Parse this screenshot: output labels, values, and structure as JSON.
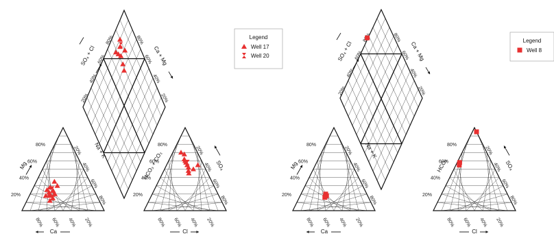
{
  "chart_data": [
    {
      "type": "scatter",
      "title": "",
      "legend": {
        "title": "Legend",
        "placement": "right",
        "entries": [
          {
            "name": "Well 17",
            "marker": "triangle"
          },
          {
            "name": "Well 20",
            "marker": "hourglass"
          }
        ]
      },
      "colors": {
        "points": "#e83030",
        "lines": "#111111"
      },
      "axis_labels": {
        "cation_left": "Mg",
        "cation_bottom": "Ca",
        "cation_right": "Na + K",
        "anion_left": "HCO₃ + CO₃",
        "anion_bottom": "Cl",
        "anion_right": "SO₄",
        "diamond_left": "SO₄ + Cl",
        "diamond_right": "Ca + Mg"
      },
      "tick_labels": [
        "20%",
        "40%",
        "60%",
        "80%"
      ],
      "series": [
        {
          "name": "Well 17",
          "cation_points": [
            {
              "mg": 22,
              "na_k": 22
            },
            {
              "mg": 30,
              "na_k": 28
            },
            {
              "mg": 18,
              "na_k": 25
            },
            {
              "mg": 25,
              "na_k": 18
            },
            {
              "mg": 20,
              "na_k": 30
            },
            {
              "mg": 15,
              "na_k": 30
            },
            {
              "mg": 28,
              "na_k": 20
            },
            {
              "mg": 35,
              "na_k": 22
            },
            {
              "mg": 12,
              "na_k": 28
            },
            {
              "mg": 24,
              "na_k": 26
            },
            {
              "mg": 18,
              "na_k": 20
            },
            {
              "mg": 20,
              "na_k": 24
            }
          ],
          "anion_points": [
            {
              "cl": 38,
              "so4": 55
            },
            {
              "cl": 30,
              "so4": 48
            },
            {
              "cl": 20,
              "so4": 60
            },
            {
              "cl": 28,
              "so4": 52
            },
            {
              "cl": 22,
              "so4": 58
            },
            {
              "cl": 18,
              "so4": 62
            },
            {
              "cl": 32,
              "so4": 45
            },
            {
              "cl": 25,
              "so4": 55
            },
            {
              "cl": 35,
              "so4": 50
            },
            {
              "cl": 10,
              "so4": 70
            },
            {
              "cl": 15,
              "so4": 68
            }
          ],
          "diamond_points": [
            {
              "so4_cl": 90,
              "ca_mg": 70
            },
            {
              "so4_cl": 86,
              "ca_mg": 72
            },
            {
              "so4_cl": 88,
              "ca_mg": 78
            },
            {
              "so4_cl": 82,
              "ca_mg": 74
            },
            {
              "so4_cl": 75,
              "ca_mg": 72
            },
            {
              "so4_cl": 70,
              "ca_mg": 70
            },
            {
              "so4_cl": 80,
              "ca_mg": 82
            },
            {
              "so4_cl": 92,
              "ca_mg": 82
            }
          ]
        },
        {
          "name": "Well 20",
          "cation_points": [
            {
              "mg": 20,
              "na_k": 28
            },
            {
              "mg": 26,
              "na_k": 24
            }
          ],
          "anion_points": [
            {
              "cl": 24,
              "so4": 58
            }
          ],
          "diamond_points": [
            {
              "so4_cl": 88,
              "ca_mg": 80
            }
          ]
        }
      ]
    },
    {
      "type": "scatter",
      "title": "",
      "legend": {
        "title": "Legend",
        "placement": "right",
        "entries": [
          {
            "name": "Well 8",
            "marker": "square"
          }
        ]
      },
      "colors": {
        "points": "#e83030",
        "lines": "#111111"
      },
      "axis_labels": {
        "cation_left": "Mg",
        "cation_bottom": "Ca",
        "cation_right": "Na + K",
        "anion_left": "HCO₃",
        "anion_bottom": "Cl",
        "anion_right": "SO₄",
        "diamond_left": "SO₄ + Cl",
        "diamond_right": "Ca + Mg"
      },
      "tick_labels": [
        "20%",
        "40%",
        "60%",
        "80%"
      ],
      "series": [
        {
          "name": "Well 8",
          "cation_points": [
            {
              "mg": 18,
              "na_k": 32
            },
            {
              "mg": 20,
              "na_k": 30
            },
            {
              "mg": 16,
              "na_k": 31
            }
          ],
          "anion_points": [
            {
              "cl": 5,
              "so4": 95
            },
            {
              "cl": 3,
              "so4": 58
            },
            {
              "cl": 4,
              "so4": 55
            }
          ],
          "diamond_points": [
            {
              "so4_cl": 100,
              "ca_mg": 66
            }
          ]
        }
      ]
    }
  ]
}
